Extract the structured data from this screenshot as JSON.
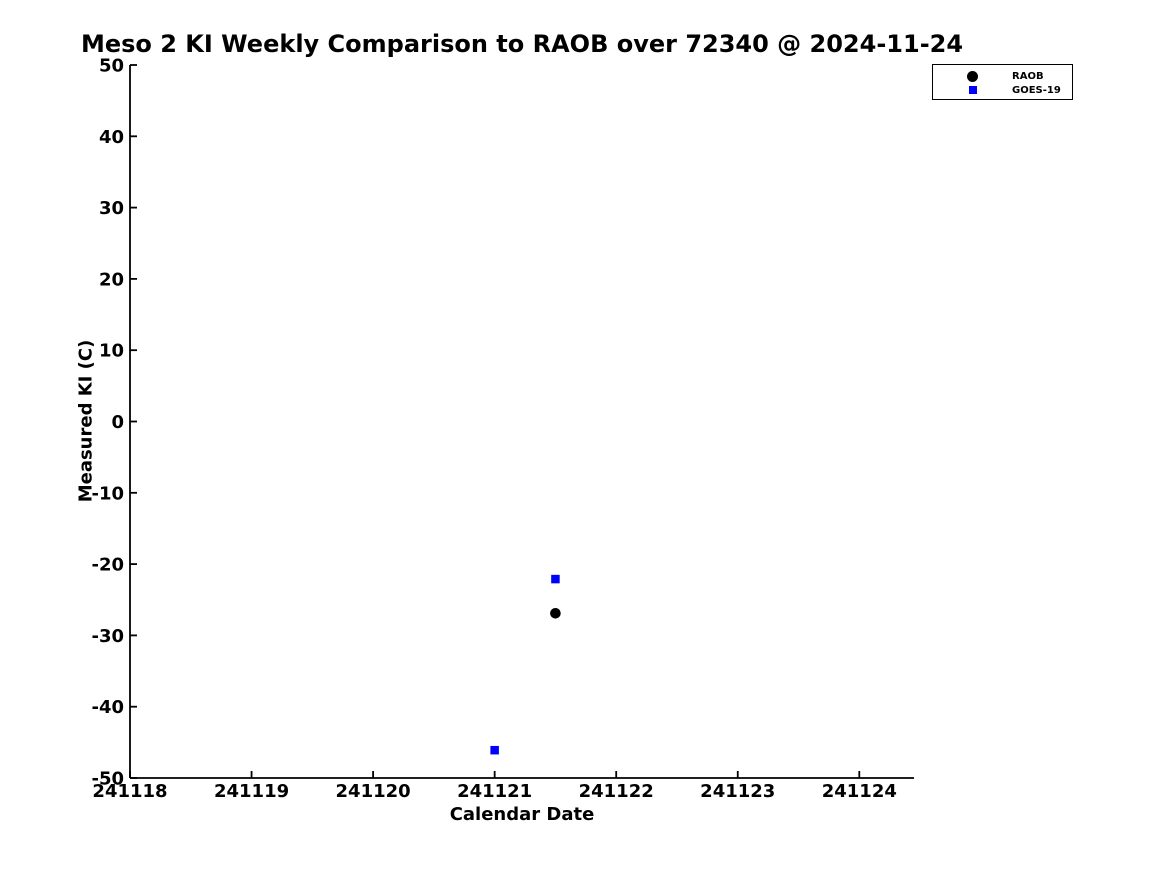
{
  "chart_data": {
    "type": "scatter",
    "title": "Meso 2 KI Weekly Comparison to RAOB over 72340 @ 2024-11-24",
    "xlabel": "Calendar Date",
    "ylabel": "Measured KI (C)",
    "xlim": [
      241118,
      241124.45
    ],
    "ylim": [
      -50,
      50
    ],
    "xticks": [
      241118,
      241119,
      241120,
      241121,
      241122,
      241123,
      241124
    ],
    "yticks": [
      -50,
      -40,
      -30,
      -20,
      -10,
      0,
      10,
      20,
      30,
      40,
      50
    ],
    "grid": false,
    "background_color": "#ffffff",
    "axis_color": "#000000",
    "legend": {
      "position": "top-right",
      "entries": [
        {
          "label": "RAOB",
          "marker": "circle",
          "color": "#000000"
        },
        {
          "label": "GOES-19",
          "marker": "square",
          "color": "#0000ff"
        }
      ]
    },
    "series": [
      {
        "name": "RAOB",
        "marker": "circle",
        "color": "#000000",
        "points": [
          [
            241121.5,
            -26.9
          ]
        ]
      },
      {
        "name": "GOES-19",
        "marker": "square",
        "color": "#0000ff",
        "points": [
          [
            241121.0,
            -46.1
          ],
          [
            241121.5,
            -22.1
          ]
        ]
      }
    ]
  }
}
